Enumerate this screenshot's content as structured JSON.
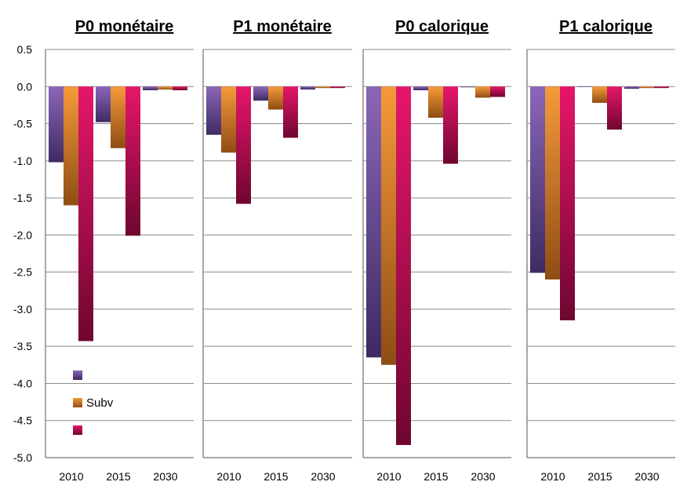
{
  "chart_data": {
    "type": "bar",
    "ylim": [
      -5.0,
      0.5
    ],
    "yticks": [
      "0.5",
      "0.0",
      "-0.5",
      "-1.0",
      "-1.5",
      "-2.0",
      "-2.5",
      "-3.0",
      "-3.5",
      "-4.0",
      "-4.5",
      "-5.0"
    ],
    "grid": true,
    "legend_placement": "bottom-left of first panel",
    "categories": [
      "2010",
      "2015",
      "2030"
    ],
    "legend": [
      {
        "name": "",
        "color": "#7b5ba6"
      },
      {
        "name": "Subv",
        "color": "#ee8c2a"
      },
      {
        "name": "",
        "color": "#d8105a"
      }
    ],
    "panels": [
      {
        "title": "P0 monétaire",
        "series": [
          {
            "name": "",
            "values": [
              -1.02,
              -0.48,
              -0.05
            ]
          },
          {
            "name": "Subv",
            "values": [
              -1.6,
              -0.83,
              -0.04
            ]
          },
          {
            "name": "",
            "values": [
              -3.43,
              -2.01,
              -0.05
            ]
          }
        ]
      },
      {
        "title": "P1 monétaire",
        "series": [
          {
            "name": "",
            "values": [
              -0.65,
              -0.19,
              -0.04
            ]
          },
          {
            "name": "Subv",
            "values": [
              -0.89,
              -0.31,
              -0.02
            ]
          },
          {
            "name": "",
            "values": [
              -1.58,
              -0.69,
              -0.02
            ]
          }
        ]
      },
      {
        "title": "P0 calorique",
        "series": [
          {
            "name": "",
            "values": [
              -3.65,
              -0.05,
              -0.01
            ]
          },
          {
            "name": "Subv",
            "values": [
              -3.75,
              -0.42,
              -0.15
            ]
          },
          {
            "name": "",
            "values": [
              -4.83,
              -1.04,
              -0.14
            ]
          }
        ]
      },
      {
        "title": "P1 calorique",
        "series": [
          {
            "name": "",
            "values": [
              -2.51,
              0.0,
              -0.03
            ]
          },
          {
            "name": "Subv",
            "values": [
              -2.6,
              -0.22,
              -0.02
            ]
          },
          {
            "name": "",
            "values": [
              -3.15,
              -0.58,
              -0.02
            ]
          }
        ]
      }
    ]
  }
}
